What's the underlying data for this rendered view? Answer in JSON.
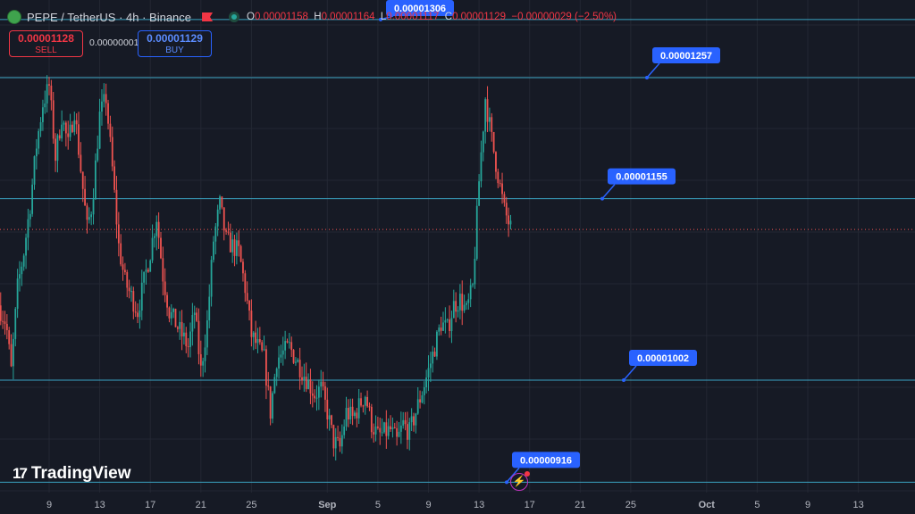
{
  "header": {
    "symbol": "PEPE / TetherUS · 4h · Binance",
    "ohlc": {
      "o_label": "O",
      "o": "0.00001158",
      "h_label": "H",
      "h": "0.00001164",
      "l_label": "L",
      "l": "0.00001117",
      "c_label": "C",
      "c": "0.00001129",
      "change": "−0.00000029 (−2.50%)"
    }
  },
  "trade": {
    "sell_price": "0.00001128",
    "sell_label": "SELL",
    "spread": "0.00000001",
    "buy_price": "0.00001129",
    "buy_label": "BUY"
  },
  "brand": {
    "name": "TradingView",
    "mark": "17"
  },
  "colors": {
    "up": "#26a69a",
    "down": "#ef5350",
    "level_line": "#3aa3c2",
    "label_bg": "#2962ff",
    "background": "#161a25",
    "grid": "#232733"
  },
  "chart_data": {
    "type": "candlestick",
    "title": "",
    "xlabel": "",
    "ylabel": "",
    "ylim": [
      8.7e-06,
      1.34e-05
    ],
    "grid": true,
    "x_ticks": [
      "9",
      "13",
      "17",
      "21",
      "25",
      "Sep",
      "5",
      "9",
      "13",
      "17",
      "21",
      "25",
      "Oct",
      "5",
      "9",
      "13"
    ],
    "x_tick_days": [
      0,
      4,
      8,
      12,
      16,
      22,
      26,
      30,
      34,
      38,
      42,
      46,
      52,
      56,
      60,
      64
    ],
    "levels": [
      {
        "label": "0.00001306",
        "value": 1.306e-05
      },
      {
        "label": "0.00001257",
        "value": 1.257e-05
      },
      {
        "label": "0.00001155",
        "value": 1.155e-05
      },
      {
        "label": "0.00001002",
        "value": 1.002e-05
      },
      {
        "label": "0.00000916",
        "value": 9.16e-06
      }
    ],
    "last_price": 1.129e-05,
    "price_path": [
      [
        -4.0,
        1.065e-05
      ],
      [
        -3.4,
        1.05e-05
      ],
      [
        -3.0,
        1.01e-05
      ],
      [
        -2.5,
        1.08e-05
      ],
      [
        -2.0,
        1.11e-05
      ],
      [
        -1.5,
        1.15e-05
      ],
      [
        -1.0,
        1.2e-05
      ],
      [
        -0.5,
        1.235e-05
      ],
      [
        0.0,
        1.25e-05
      ],
      [
        0.5,
        1.19e-05
      ],
      [
        1.0,
        1.225e-05
      ],
      [
        1.5,
        1.2e-05
      ],
      [
        2.0,
        1.23e-05
      ],
      [
        2.5,
        1.18e-05
      ],
      [
        3.0,
        1.13e-05
      ],
      [
        3.4,
        1.15e-05
      ],
      [
        4.0,
        1.225e-05
      ],
      [
        4.5,
        1.24e-05
      ],
      [
        5.0,
        1.18e-05
      ],
      [
        5.5,
        1.115e-05
      ],
      [
        6.0,
        1.085e-05
      ],
      [
        7.0,
        1.06e-05
      ],
      [
        8.0,
        1.11e-05
      ],
      [
        8.5,
        1.14e-05
      ],
      [
        9.0,
        1.09e-05
      ],
      [
        9.5,
        1.06e-05
      ],
      [
        10.0,
        1.05e-05
      ],
      [
        11.0,
        1.03e-05
      ],
      [
        11.5,
        1.06e-05
      ],
      [
        12.0,
        1.01e-05
      ],
      [
        12.5,
        1.05e-05
      ],
      [
        13.0,
        1.12e-05
      ],
      [
        13.5,
        1.15e-05
      ],
      [
        14.0,
        1.12e-05
      ],
      [
        15.0,
        1.11e-05
      ],
      [
        15.5,
        1.08e-05
      ],
      [
        16.0,
        1.04e-05
      ],
      [
        17.0,
        1.02e-05
      ],
      [
        17.5,
        9.75e-06
      ],
      [
        18.0,
        1.02e-05
      ],
      [
        19.0,
        1.03e-05
      ],
      [
        20.0,
        1.01e-05
      ],
      [
        21.0,
        9.9e-06
      ],
      [
        21.5,
        9.95e-06
      ],
      [
        22.0,
        9.75e-06
      ],
      [
        22.5,
        9.5e-06
      ],
      [
        23.0,
        9.45e-06
      ],
      [
        23.5,
        9.75e-06
      ],
      [
        24.0,
        9.7e-06
      ],
      [
        25.0,
        9.9e-06
      ],
      [
        25.5,
        9.65e-06
      ],
      [
        26.0,
        9.55e-06
      ],
      [
        27.0,
        9.6e-06
      ],
      [
        27.5,
        9.5e-06
      ],
      [
        28.0,
        9.65e-06
      ],
      [
        28.5,
        9.58e-06
      ],
      [
        29.0,
        9.75e-06
      ],
      [
        30.0,
        1.01e-05
      ],
      [
        30.5,
        1.03e-05
      ],
      [
        31.0,
        1.05e-05
      ],
      [
        31.5,
        1.045e-05
      ],
      [
        32.0,
        1.065e-05
      ],
      [
        32.5,
        1.07e-05
      ],
      [
        33.0,
        1.06e-05
      ],
      [
        33.5,
        1.08e-05
      ],
      [
        34.0,
        1.17e-05
      ],
      [
        34.5,
        1.24e-05
      ],
      [
        35.0,
        1.205e-05
      ],
      [
        35.5,
        1.175e-05
      ],
      [
        36.0,
        1.145e-05
      ],
      [
        36.5,
        1.13e-05
      ]
    ]
  }
}
